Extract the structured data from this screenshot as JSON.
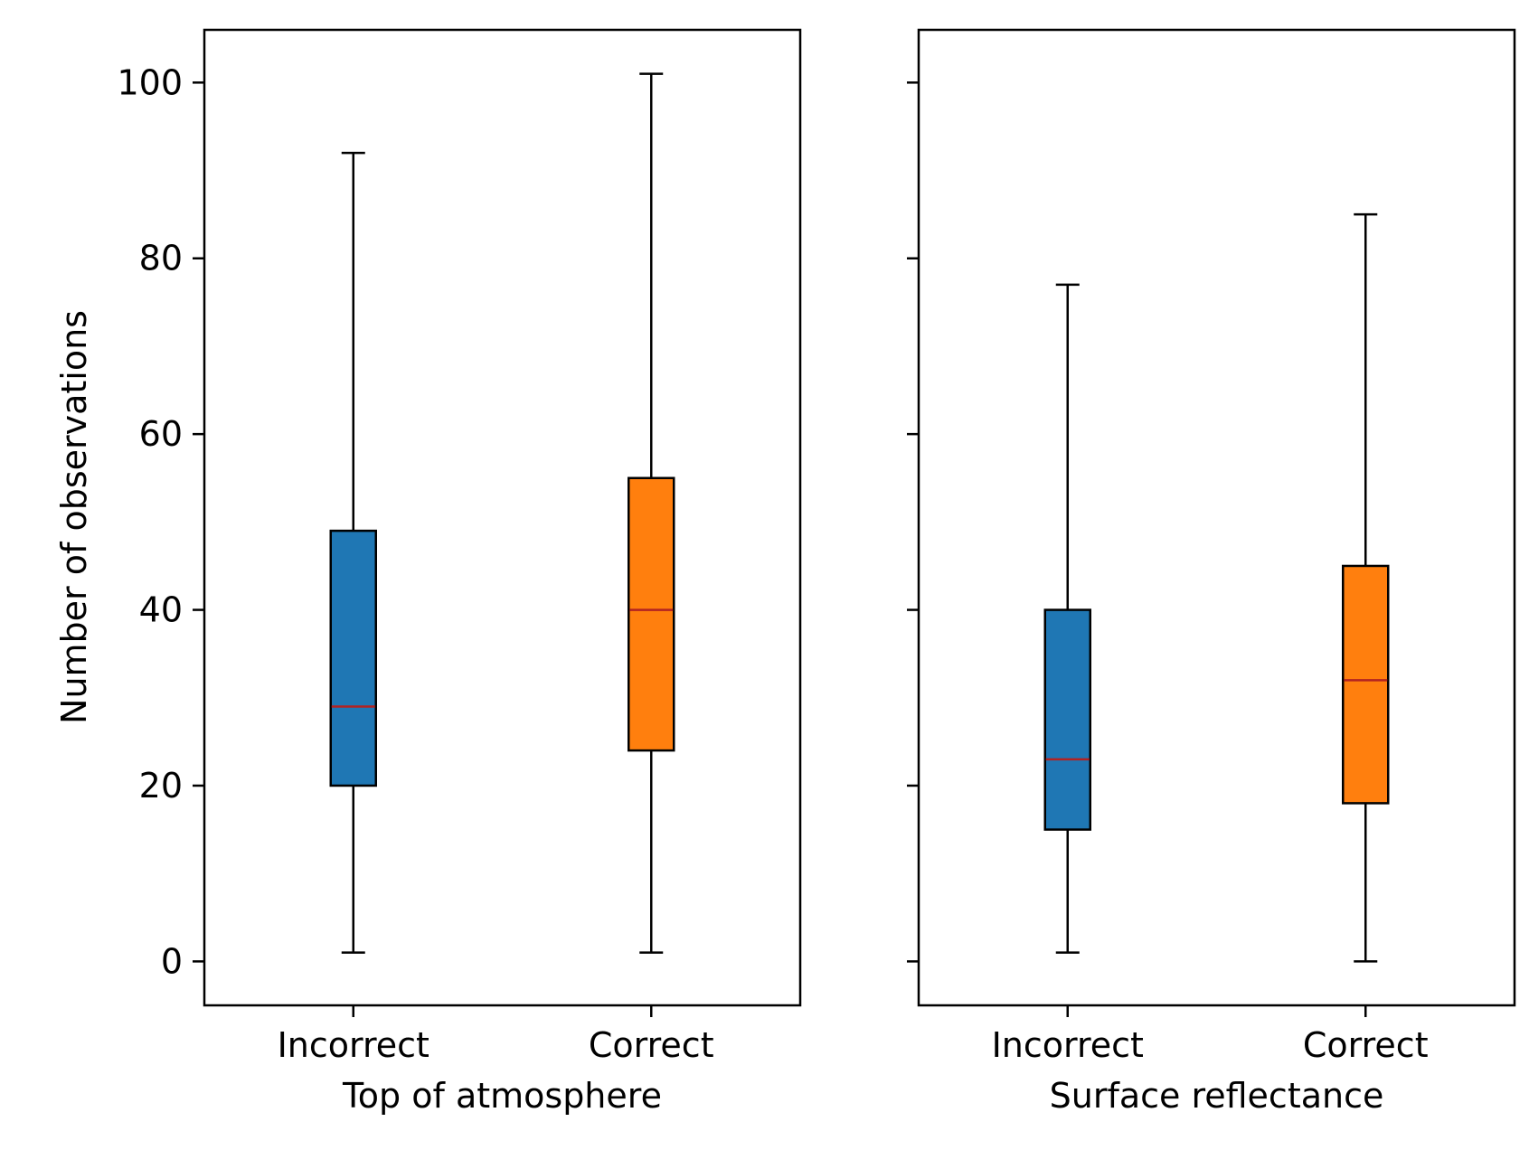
{
  "chart_data": {
    "type": "box",
    "shared_y": true,
    "ylabel": "Number of observations",
    "ylim": [
      -5,
      106
    ],
    "yticks": [
      0,
      20,
      40,
      60,
      80,
      100
    ],
    "colors": {
      "Incorrect": "#1f77b4",
      "Correct": "#ff7f0e",
      "median": "#b22222",
      "frame": "#000000"
    },
    "panels": [
      {
        "xlabel": "Top of atmosphere",
        "categories": [
          "Incorrect",
          "Correct"
        ],
        "boxes": [
          {
            "category": "Incorrect",
            "whisker_low": 1,
            "q1": 20,
            "median": 29,
            "q3": 49,
            "whisker_high": 92
          },
          {
            "category": "Correct",
            "whisker_low": 1,
            "q1": 24,
            "median": 40,
            "q3": 55,
            "whisker_high": 101
          }
        ]
      },
      {
        "xlabel": "Surface reflectance",
        "categories": [
          "Incorrect",
          "Correct"
        ],
        "boxes": [
          {
            "category": "Incorrect",
            "whisker_low": 1,
            "q1": 15,
            "median": 23,
            "q3": 40,
            "whisker_high": 77
          },
          {
            "category": "Correct",
            "whisker_low": 0,
            "q1": 18,
            "median": 32,
            "q3": 45,
            "whisker_high": 85
          }
        ]
      }
    ]
  }
}
